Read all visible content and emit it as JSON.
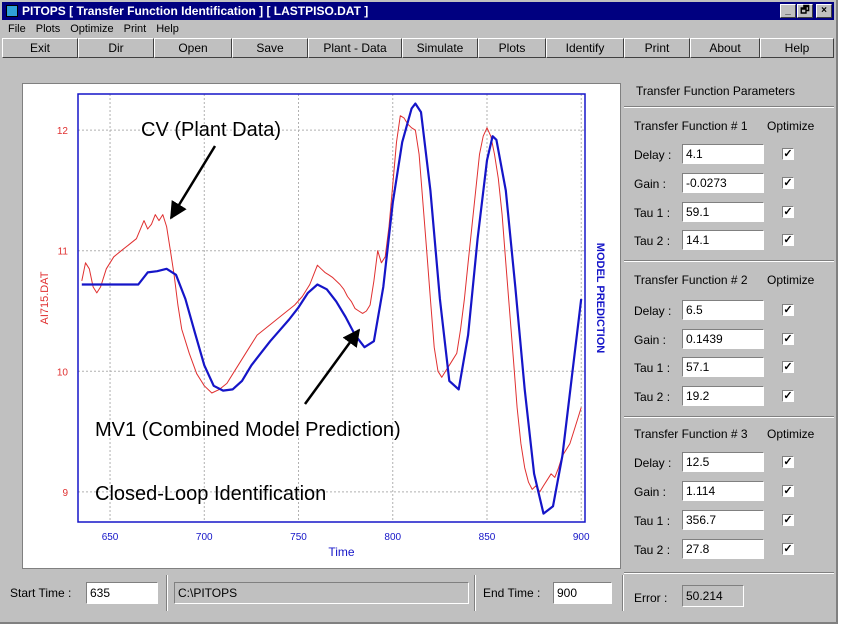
{
  "window": {
    "title": "PITOPS [ Transfer Function Identification ]   [ LASTPISO.DAT ]",
    "controls": [
      "_",
      "🗗",
      "×"
    ]
  },
  "menu": [
    "File",
    "Plots",
    "Optimize",
    "Print",
    "Help"
  ],
  "toolbar": {
    "exit": "Exit",
    "dir": "Dir",
    "open": "Open",
    "save": "Save",
    "plant_data": "Plant - Data",
    "simulate": "Simulate",
    "plots": "Plots",
    "identify": "Identify",
    "print": "Print",
    "about": "About",
    "help": "Help"
  },
  "panel": {
    "title": "Transfer Function Parameters",
    "optimize_label": "Optimize",
    "tf": [
      {
        "label": "Transfer Function # 1",
        "delay": "4.1",
        "gain": "-0.0273",
        "tau1": "59.1",
        "tau2": "14.1"
      },
      {
        "label": "Transfer Function # 2",
        "delay": "6.5",
        "gain": "0.1439",
        "tau1": "57.1",
        "tau2": "19.2"
      },
      {
        "label": "Transfer Function # 3",
        "delay": "12.5",
        "gain": "1.114",
        "tau1": "356.7",
        "tau2": "27.8"
      }
    ],
    "labels": {
      "delay": "Delay :",
      "gain": "Gain  :",
      "tau1": "Tau 1 :",
      "tau2": "Tau 2 :"
    },
    "check_mark": "✓",
    "error_label": "Error :",
    "error_value": "50.214"
  },
  "status": {
    "start_label": "Start Time :",
    "start_value": "635",
    "path": "C:\\PITOPS",
    "end_label": "End Time :",
    "end_value": "900"
  },
  "chart_data": {
    "type": "line",
    "xlabel": "Time",
    "ylabel": "AI715.DAT",
    "ylabel_right": "MODEL PREDICTION",
    "xlim": [
      633,
      902
    ],
    "ylim": [
      8.75,
      12.3
    ],
    "xticks": [
      650,
      700,
      750,
      800,
      850,
      900
    ],
    "yticks": [
      9,
      10,
      11,
      12
    ],
    "grid": true,
    "annotations": [
      {
        "text": "CV (Plant Data)"
      },
      {
        "text": "MV1 (Combined Model Prediction)"
      },
      {
        "text": "Closed-Loop Identification"
      }
    ],
    "series": [
      {
        "color": "#e03030",
        "x": [
          635,
          637,
          639,
          641,
          643,
          645,
          648,
          652,
          656,
          660,
          664,
          668,
          670,
          672,
          674,
          676,
          678,
          680,
          682,
          684,
          686,
          688,
          692,
          696,
          700,
          704,
          708,
          712,
          716,
          720,
          724,
          728,
          732,
          736,
          740,
          744,
          748,
          752,
          756,
          758,
          760,
          762,
          764,
          766,
          768,
          770,
          772,
          774,
          776,
          778,
          780,
          782,
          784,
          786,
          788,
          790,
          792,
          794,
          796,
          798,
          800,
          802,
          804,
          806,
          808,
          810,
          812,
          814,
          816,
          818,
          820,
          822,
          824,
          826,
          828,
          830,
          832,
          834,
          836,
          838,
          840,
          842,
          844,
          846,
          848,
          850,
          852,
          854,
          856,
          858,
          860,
          862,
          864,
          866,
          868,
          870,
          872,
          874,
          876,
          878,
          880,
          882,
          884,
          886,
          888,
          890,
          892,
          894,
          896,
          898,
          900
        ],
        "y": [
          10.75,
          10.9,
          10.85,
          10.7,
          10.65,
          10.7,
          10.85,
          10.95,
          11.0,
          11.05,
          11.1,
          11.25,
          11.18,
          11.22,
          11.3,
          11.25,
          11.3,
          11.2,
          11.0,
          10.8,
          10.55,
          10.35,
          10.15,
          9.98,
          9.88,
          9.82,
          9.85,
          9.9,
          10.0,
          10.1,
          10.2,
          10.3,
          10.35,
          10.4,
          10.45,
          10.5,
          10.55,
          10.62,
          10.72,
          10.8,
          10.88,
          10.85,
          10.82,
          10.8,
          10.78,
          10.75,
          10.72,
          10.68,
          10.62,
          10.58,
          10.52,
          10.5,
          10.48,
          10.5,
          10.55,
          10.75,
          11.0,
          10.9,
          10.95,
          11.2,
          11.55,
          11.9,
          12.12,
          12.1,
          12.05,
          12.02,
          12.0,
          11.8,
          11.4,
          11.0,
          10.6,
          10.2,
          10.0,
          9.95,
          10.0,
          10.05,
          10.1,
          10.15,
          10.35,
          10.6,
          10.9,
          11.2,
          11.5,
          11.8,
          11.95,
          12.02,
          11.95,
          11.8,
          11.6,
          11.3,
          10.9,
          10.5,
          10.1,
          9.7,
          9.4,
          9.2,
          9.08,
          9.02,
          9.05,
          9.0,
          9.05,
          9.1,
          9.15,
          9.12,
          9.2,
          9.3,
          9.35,
          9.4,
          9.5,
          9.6,
          9.7
        ]
      },
      {
        "color": "#1515c8",
        "x": [
          635,
          640,
          645,
          650,
          655,
          660,
          665,
          670,
          675,
          680,
          685,
          690,
          695,
          700,
          705,
          710,
          715,
          720,
          725,
          730,
          735,
          740,
          745,
          750,
          755,
          760,
          765,
          770,
          775,
          780,
          785,
          790,
          795,
          800,
          805,
          810,
          812,
          815,
          820,
          825,
          830,
          835,
          840,
          845,
          850,
          853,
          855,
          860,
          865,
          870,
          875,
          880,
          885,
          890,
          895,
          900
        ],
        "y": [
          10.72,
          10.72,
          10.72,
          10.72,
          10.72,
          10.72,
          10.72,
          10.82,
          10.83,
          10.85,
          10.8,
          10.6,
          10.32,
          10.05,
          9.88,
          9.84,
          9.85,
          9.92,
          10.05,
          10.15,
          10.25,
          10.34,
          10.43,
          10.53,
          10.65,
          10.72,
          10.68,
          10.58,
          10.45,
          10.3,
          10.2,
          10.25,
          10.7,
          11.4,
          11.9,
          12.18,
          12.22,
          12.15,
          11.5,
          10.6,
          9.92,
          9.85,
          10.3,
          11.1,
          11.75,
          11.95,
          11.92,
          11.5,
          10.7,
          9.85,
          9.15,
          8.82,
          8.88,
          9.3,
          9.95,
          10.6
        ]
      }
    ]
  }
}
